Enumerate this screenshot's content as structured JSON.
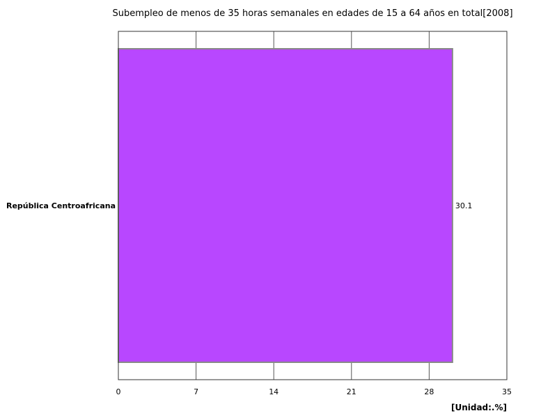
{
  "chart_data": {
    "type": "bar",
    "orientation": "horizontal",
    "title": "Subempleo de menos de 35 horas semanales en edades de 15 a 64 años en total[2008]",
    "categories": [
      "República Centroafricana"
    ],
    "values": [
      30.1
    ],
    "value_labels": [
      "30.1"
    ],
    "xlim": [
      0,
      35
    ],
    "xticks": [
      0,
      7,
      14,
      21,
      28,
      35
    ],
    "unit_label": "[Unidad:.%]",
    "grid": true,
    "bar_color": "#b847ff"
  }
}
